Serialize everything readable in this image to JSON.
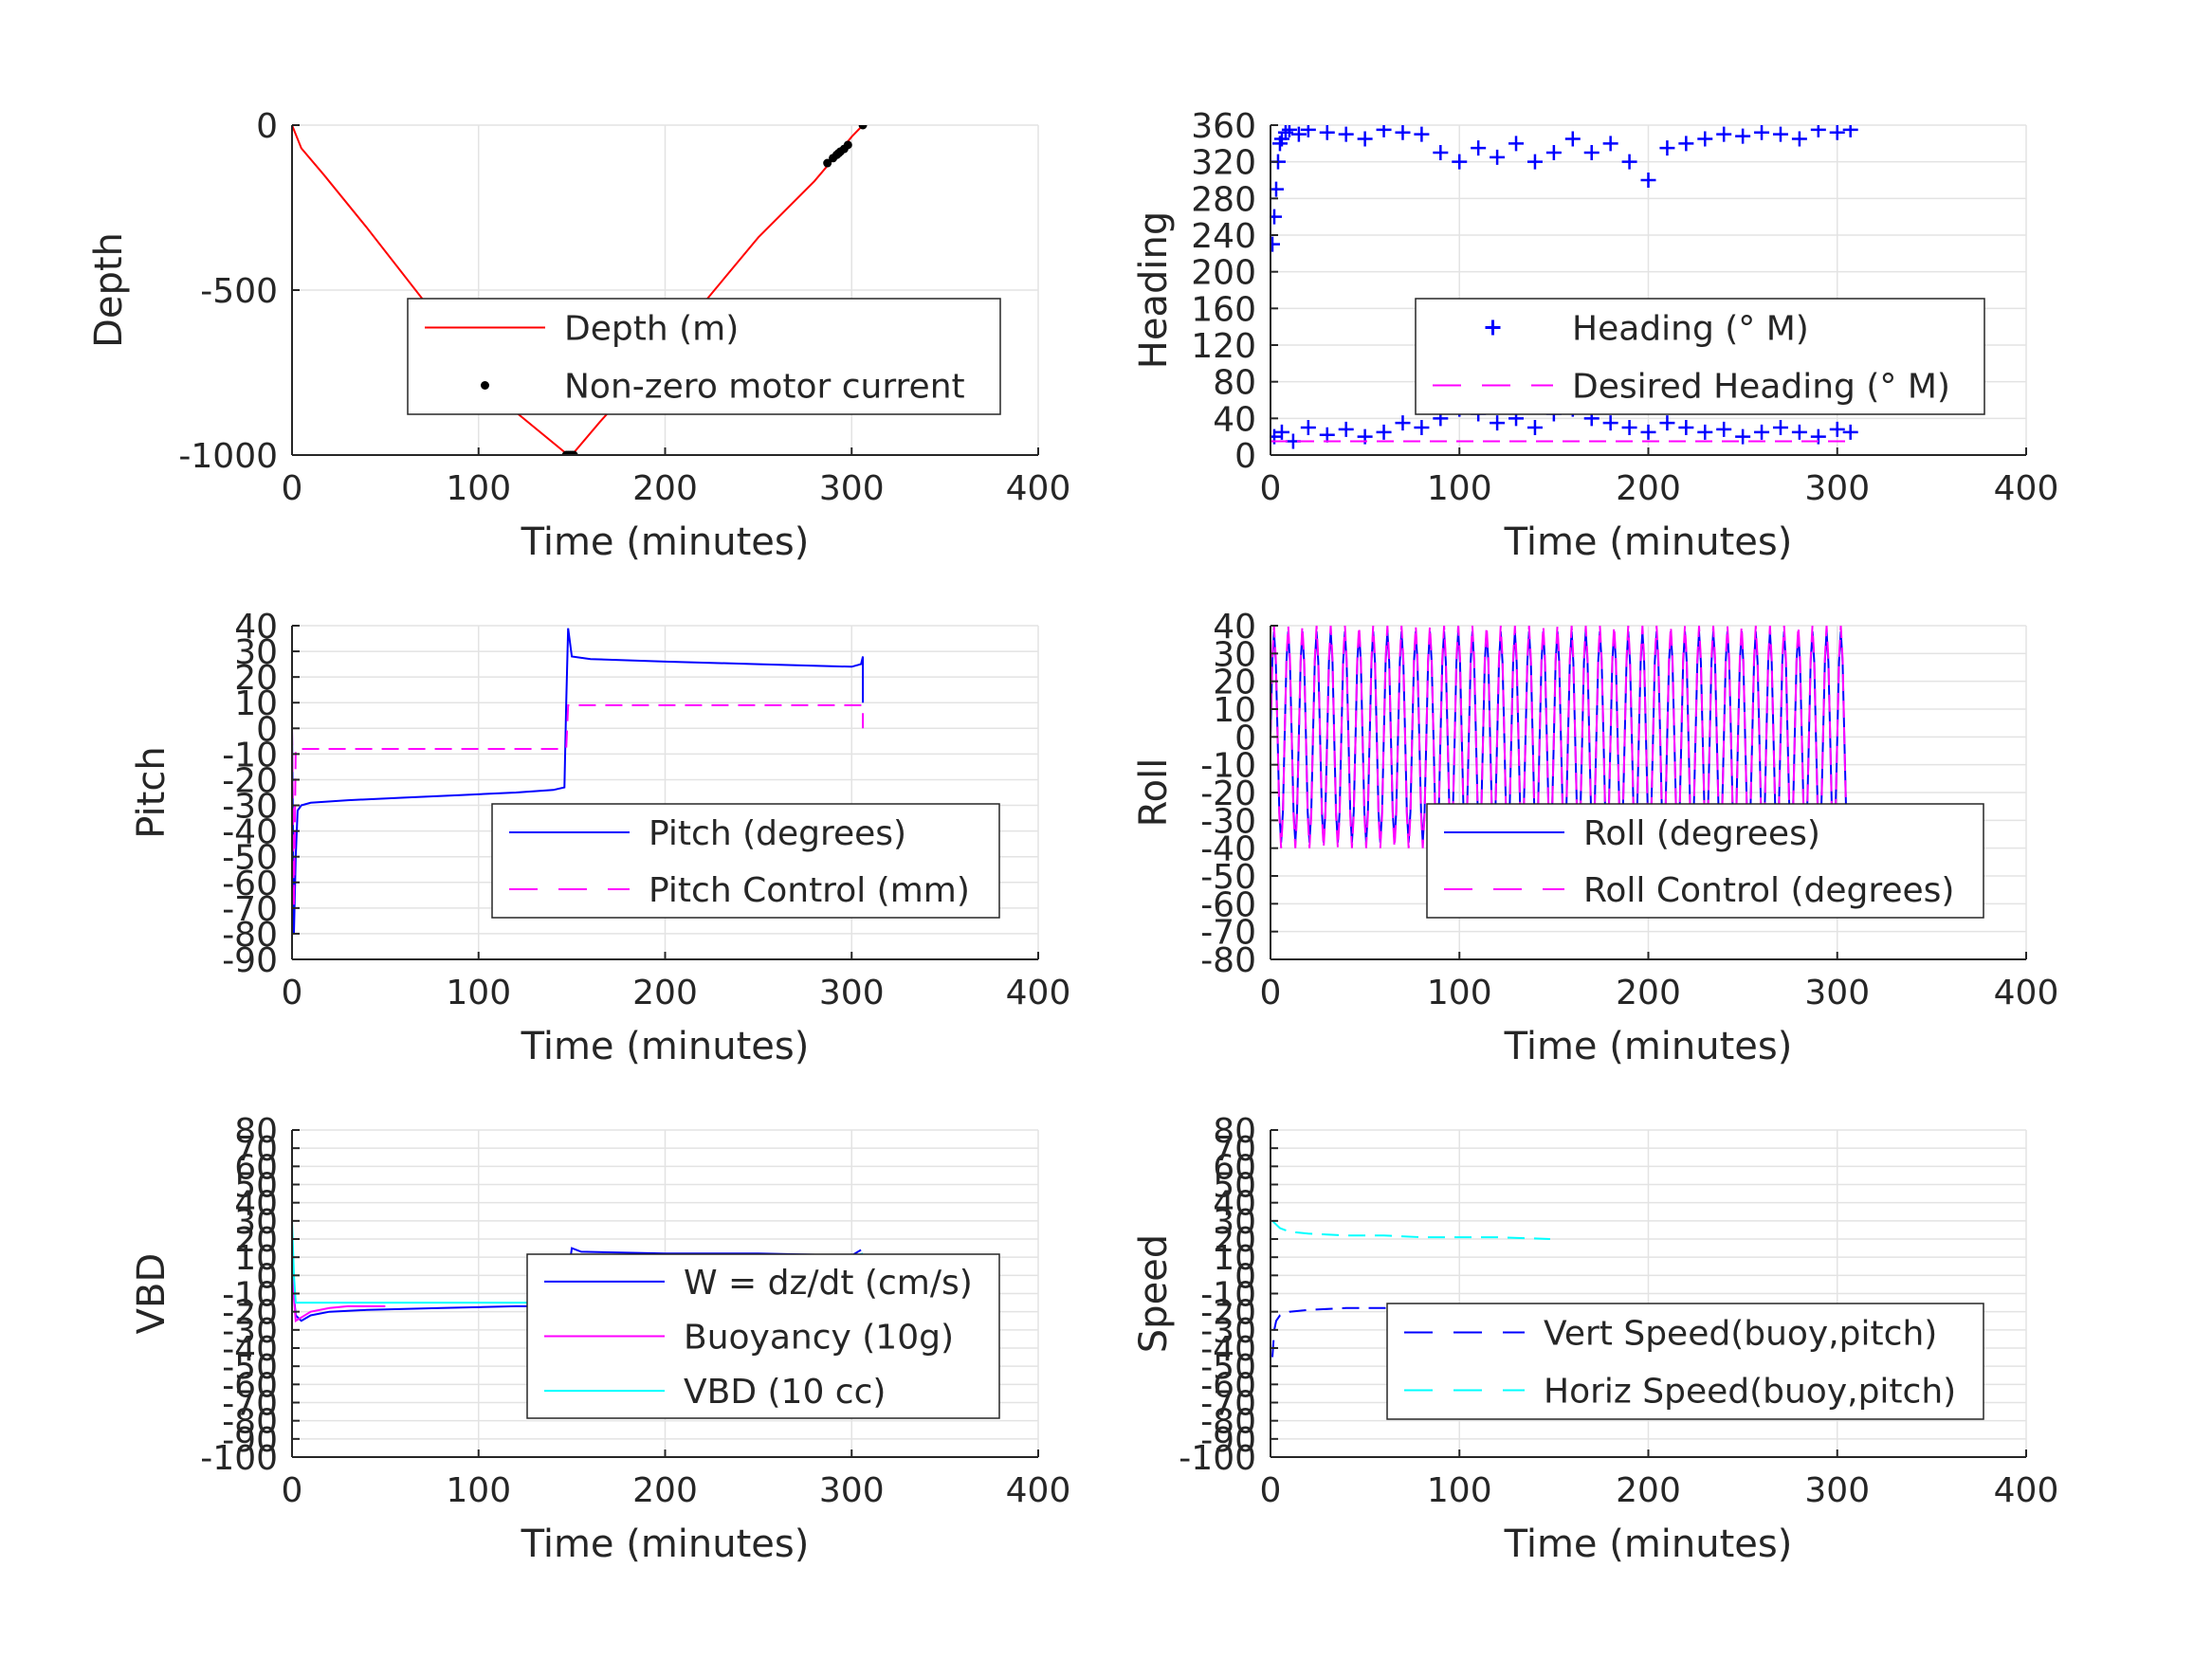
{
  "chart_data": [
    {
      "type": "line",
      "xlabel": "Time (minutes)",
      "ylabel": "Depth",
      "xlim": [
        0,
        400
      ],
      "ylim": [
        -1000,
        0
      ],
      "xticks": [
        0,
        100,
        200,
        300,
        400
      ],
      "yticks": [
        -1000,
        -500,
        0
      ],
      "grid": true,
      "legend_position": "center-right",
      "series": [
        {
          "name": "Depth (m)",
          "color": "#ff0000",
          "style": "solid",
          "x": [
            0,
            5,
            17,
            40,
            80,
            120,
            148,
            150,
            165,
            200,
            250,
            280,
            295,
            300,
            306
          ],
          "y": [
            0,
            -70,
            -150,
            -310,
            -600,
            -870,
            -1000,
            -1000,
            -900,
            -680,
            -340,
            -170,
            -70,
            -35,
            0
          ]
        },
        {
          "name": "Non-zero motor current",
          "color": "#000000",
          "style": "dots",
          "x": [
            147,
            148,
            149,
            150,
            151,
            287,
            290,
            292,
            293,
            294,
            296,
            298,
            306
          ],
          "y": [
            -1000,
            -1000,
            -1000,
            -1000,
            -1000,
            -115,
            -100,
            -90,
            -85,
            -80,
            -72,
            -60,
            0
          ]
        }
      ]
    },
    {
      "type": "scatter",
      "xlabel": "Time (minutes)",
      "ylabel": "Heading",
      "xlim": [
        0,
        400
      ],
      "ylim": [
        0,
        360
      ],
      "xticks": [
        0,
        100,
        200,
        300,
        400
      ],
      "yticks": [
        0,
        40,
        80,
        120,
        160,
        200,
        240,
        280,
        320,
        360
      ],
      "grid": true,
      "legend_position": "center-right",
      "series": [
        {
          "name": "Heading (° M)",
          "color": "#0000ff",
          "style": "plus",
          "x": [
            1,
            2,
            3,
            4,
            5,
            6,
            8,
            10,
            15,
            20,
            30,
            40,
            50,
            60,
            70,
            80,
            90,
            100,
            110,
            120,
            130,
            140,
            150,
            160,
            170,
            180,
            190,
            200,
            210,
            220,
            230,
            240,
            250,
            260,
            270,
            280,
            290,
            300,
            307,
            2,
            6,
            12,
            20,
            30,
            40,
            50,
            60,
            70,
            80,
            90,
            100,
            110,
            120,
            130,
            140,
            150,
            160,
            170,
            180,
            190,
            200,
            210,
            220,
            230,
            240,
            250,
            260,
            270,
            280,
            290,
            300,
            307
          ],
          "y": [
            230,
            260,
            290,
            320,
            340,
            345,
            352,
            355,
            350,
            355,
            352,
            350,
            345,
            355,
            352,
            350,
            330,
            320,
            335,
            325,
            340,
            320,
            330,
            345,
            330,
            340,
            320,
            300,
            335,
            340,
            345,
            350,
            348,
            352,
            350,
            345,
            355,
            352,
            355,
            20,
            25,
            15,
            30,
            22,
            28,
            20,
            25,
            35,
            30,
            40,
            50,
            45,
            35,
            40,
            30,
            45,
            50,
            40,
            35,
            30,
            25,
            35,
            30,
            25,
            28,
            20,
            25,
            30,
            25,
            20,
            28,
            25
          ]
        },
        {
          "name": "Desired Heading (° M)",
          "color": "#ff00ff",
          "style": "dashed",
          "x": [
            0,
            307
          ],
          "y": [
            15,
            15
          ]
        }
      ]
    },
    {
      "type": "line",
      "xlabel": "Time (minutes)",
      "ylabel": "Pitch",
      "xlim": [
        0,
        400
      ],
      "ylim": [
        -90,
        40
      ],
      "xticks": [
        0,
        100,
        200,
        300,
        400
      ],
      "yticks": [
        -90,
        -80,
        -70,
        -60,
        -50,
        -40,
        -30,
        -20,
        -10,
        0,
        10,
        20,
        30,
        40
      ],
      "grid": true,
      "legend_position": "center-right",
      "series": [
        {
          "name": "Pitch (degrees)",
          "color": "#0000ff",
          "style": "solid",
          "x": [
            0,
            1,
            2,
            3,
            5,
            10,
            30,
            60,
            90,
            120,
            140,
            146,
            147,
            148,
            150,
            160,
            200,
            250,
            300,
            305,
            306,
            306
          ],
          "y": [
            0,
            -80,
            -50,
            -32,
            -30,
            -29,
            -28,
            -27,
            -26,
            -25,
            -24,
            -23,
            10,
            39,
            28,
            27,
            26,
            25,
            24,
            25,
            28,
            10
          ]
        },
        {
          "name": "Pitch Control (mm)",
          "color": "#ff00ff",
          "style": "dashed",
          "x": [
            0,
            1,
            2,
            147,
            148,
            306,
            306
          ],
          "y": [
            0,
            -70,
            -8,
            -8,
            9,
            9,
            0
          ]
        }
      ]
    },
    {
      "type": "line",
      "xlabel": "Time (minutes)",
      "ylabel": "Roll",
      "xlim": [
        0,
        400
      ],
      "ylim": [
        -80,
        40
      ],
      "xticks": [
        0,
        100,
        200,
        300,
        400
      ],
      "yticks": [
        -80,
        -70,
        -60,
        -50,
        -40,
        -30,
        -20,
        -10,
        0,
        10,
        20,
        30,
        40
      ],
      "grid": true,
      "legend_position": "center-right",
      "series": [
        {
          "name": "Roll (degrees)",
          "color": "#0000ff",
          "style": "solid",
          "x": [
            0,
            307
          ],
          "y": [
            0,
            0
          ],
          "oscillation": {
            "period": 7.5,
            "amplitude": 38
          }
        },
        {
          "name": "Roll Control (degrees)",
          "color": "#ff00ff",
          "style": "dashed",
          "x": [
            0,
            307
          ],
          "y": [
            0,
            0
          ],
          "oscillation": {
            "period": 7.5,
            "amplitude": 40
          }
        }
      ]
    },
    {
      "type": "line",
      "xlabel": "Time (minutes)",
      "ylabel": "VBD",
      "xlim": [
        0,
        400
      ],
      "ylim": [
        -100,
        80
      ],
      "xticks": [
        0,
        100,
        200,
        300,
        400
      ],
      "yticks": [
        -100,
        -90,
        -80,
        -70,
        -60,
        -50,
        -40,
        -30,
        -20,
        -10,
        0,
        10,
        20,
        30,
        40,
        50,
        60,
        70,
        80
      ],
      "grid": true,
      "legend_position": "center-right",
      "series": [
        {
          "name": "W = dz/dt (cm/s)",
          "color": "#0000ff",
          "style": "solid",
          "x": [
            0,
            2,
            5,
            10,
            20,
            40,
            80,
            120,
            145,
            148,
            150,
            155,
            200,
            250,
            300,
            305
          ],
          "y": [
            0,
            -22,
            -25,
            -22,
            -20,
            -19,
            -18,
            -17,
            -17,
            0,
            15,
            13,
            12,
            12,
            11,
            14
          ]
        },
        {
          "name": "Buoyancy (10g)",
          "color": "#ff00ff",
          "style": "solid",
          "x": [
            0,
            2,
            10,
            20,
            30,
            50
          ],
          "y": [
            0,
            -25,
            -20,
            -18,
            -17,
            -17
          ]
        },
        {
          "name": "VBD (10 cc)",
          "color": "#00ffff",
          "style": "solid",
          "x": [
            0,
            1,
            2,
            5,
            20,
            60,
            100,
            145,
            148,
            150,
            200,
            250,
            300,
            306
          ],
          "y": [
            30,
            0,
            -15,
            -15,
            -15,
            -15,
            -15,
            -15,
            0,
            10,
            10,
            10,
            10,
            12
          ]
        }
      ]
    },
    {
      "type": "line",
      "xlabel": "Time (minutes)",
      "ylabel": "Speed",
      "xlim": [
        0,
        400
      ],
      "ylim": [
        -100,
        80
      ],
      "xticks": [
        0,
        100,
        200,
        300,
        400
      ],
      "yticks": [
        -100,
        -90,
        -80,
        -70,
        -60,
        -50,
        -40,
        -30,
        -20,
        -10,
        0,
        10,
        20,
        30,
        40,
        50,
        60,
        70,
        80
      ],
      "grid": true,
      "legend_position": "center-right",
      "series": [
        {
          "name": "Vert Speed(buoy,pitch)",
          "color": "#0000ff",
          "style": "dashed",
          "x": [
            1,
            2,
            3,
            5,
            10,
            20,
            40,
            60,
            80,
            100,
            120,
            148
          ],
          "y": [
            -45,
            -30,
            -25,
            -22,
            -20,
            -19,
            -18,
            -18,
            -17,
            -17,
            -17,
            -16
          ]
        },
        {
          "name": "Horiz Speed(buoy,pitch)",
          "color": "#00ffff",
          "style": "dashed",
          "x": [
            1,
            3,
            5,
            10,
            20,
            40,
            60,
            80,
            100,
            120,
            148
          ],
          "y": [
            30,
            28,
            26,
            24,
            23,
            22,
            22,
            21,
            21,
            21,
            20
          ]
        }
      ]
    }
  ]
}
